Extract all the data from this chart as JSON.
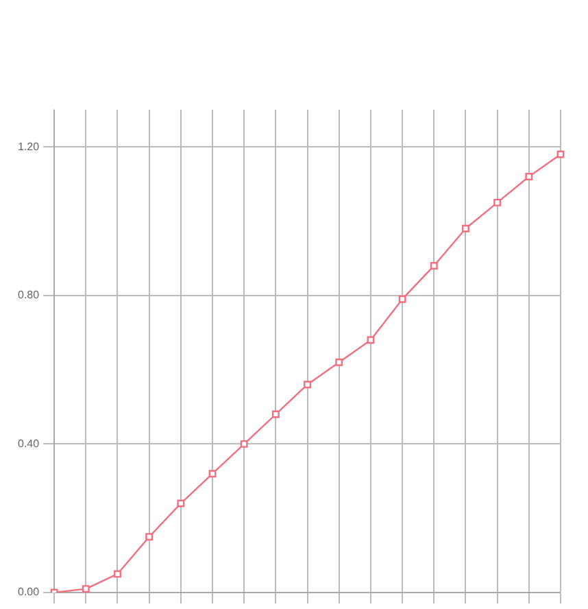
{
  "chart_data": {
    "type": "line",
    "categories": [
      null,
      null,
      null,
      null,
      null,
      null,
      null,
      null,
      null,
      null,
      null,
      null,
      null,
      null,
      null,
      null,
      null
    ],
    "series": [
      {
        "color": "#f07080",
        "values": [
          0.0,
          0.01,
          0.05,
          0.15,
          0.24,
          0.32,
          0.4,
          0.48,
          0.56,
          0.62,
          0.68,
          0.79,
          0.88,
          0.98,
          1.05,
          1.12,
          1.18
        ]
      }
    ],
    "ylim": [
      0,
      1.3
    ],
    "yticks": [
      {
        "value": 0,
        "label": "0.00"
      },
      {
        "value": 0.4,
        "label": "0.40"
      },
      {
        "value": 0.8,
        "label": "0.80"
      },
      {
        "value": 1.2,
        "label": "1.20"
      }
    ],
    "grid": true,
    "marker": "square",
    "tick_labels": "y"
  }
}
